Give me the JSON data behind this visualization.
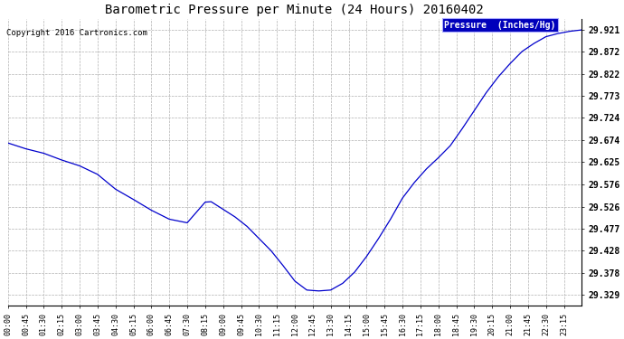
{
  "title": "Barometric Pressure per Minute (24 Hours) 20160402",
  "copyright": "Copyright 2016 Cartronics.com",
  "legend_label": "Pressure  (Inches/Hg)",
  "line_color": "#0000cc",
  "background_color": "#ffffff",
  "grid_color": "#b0b0b0",
  "yticks": [
    29.329,
    29.378,
    29.428,
    29.477,
    29.526,
    29.576,
    29.625,
    29.674,
    29.724,
    29.773,
    29.822,
    29.872,
    29.921
  ],
  "ylim": [
    29.305,
    29.945
  ],
  "xlim": [
    0,
    1439
  ],
  "xtick_labels": [
    "00:00",
    "00:45",
    "01:30",
    "02:15",
    "03:00",
    "03:45",
    "04:30",
    "05:15",
    "06:00",
    "06:45",
    "07:30",
    "08:15",
    "09:00",
    "09:45",
    "10:30",
    "11:15",
    "12:00",
    "12:45",
    "13:30",
    "14:15",
    "15:00",
    "15:45",
    "16:30",
    "17:15",
    "18:00",
    "18:45",
    "19:30",
    "20:15",
    "21:00",
    "21:45",
    "22:30",
    "23:15"
  ],
  "curve_minutes": [
    0,
    45,
    90,
    135,
    180,
    225,
    270,
    315,
    360,
    405,
    450,
    495,
    510,
    540,
    570,
    600,
    630,
    660,
    690,
    720,
    750,
    780,
    810,
    840,
    870,
    900,
    930,
    960,
    990,
    1020,
    1050,
    1080,
    1110,
    1140,
    1170,
    1200,
    1230,
    1260,
    1290,
    1320,
    1350,
    1380,
    1410,
    1439
  ],
  "curve_y": [
    29.668,
    29.655,
    29.645,
    29.63,
    29.617,
    29.598,
    29.565,
    29.542,
    29.518,
    29.498,
    29.49,
    29.536,
    29.537,
    29.52,
    29.503,
    29.482,
    29.455,
    29.428,
    29.395,
    29.36,
    29.34,
    29.338,
    29.34,
    29.355,
    29.38,
    29.415,
    29.455,
    29.498,
    29.545,
    29.58,
    29.61,
    29.635,
    29.662,
    29.7,
    29.74,
    29.78,
    29.815,
    29.845,
    29.872,
    29.89,
    29.905,
    29.912,
    29.917,
    29.92
  ]
}
